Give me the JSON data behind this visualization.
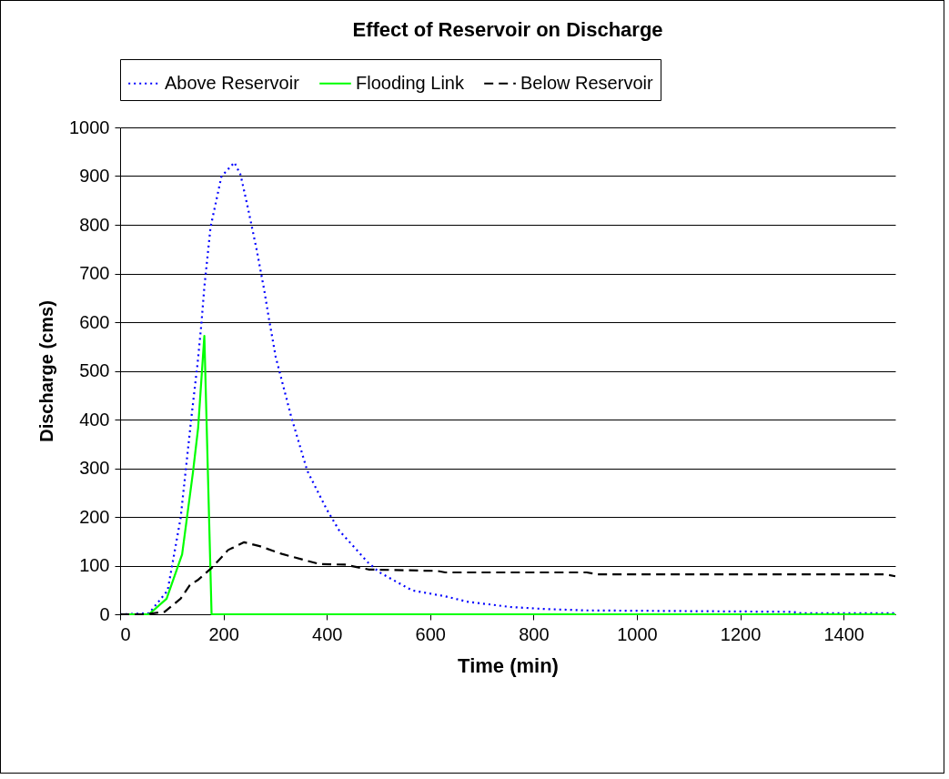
{
  "chart_data": {
    "type": "line",
    "title": "Effect of Reservoir on Discharge",
    "xlabel": "Time (min)",
    "ylabel": "Discharge (cms)",
    "xlim": [
      0,
      1500
    ],
    "xticks": [
      0,
      200,
      400,
      600,
      800,
      1000,
      1200,
      1400
    ],
    "ylim": [
      0,
      1000
    ],
    "yticks": [
      0,
      100,
      200,
      300,
      400,
      500,
      600,
      700,
      800,
      900,
      1000
    ],
    "grid": "y",
    "legend": "top",
    "marker": "none",
    "series": [
      {
        "name": "Above Reservoir",
        "color": "#0000ff",
        "line_style": "dotted",
        "x": [
          0,
          56,
          92,
          117,
          138,
          150,
          157,
          163,
          175,
          196,
          221,
          233,
          246,
          264,
          279,
          288,
          301,
          331,
          362,
          399,
          424,
          479,
          502,
          565,
          629,
          671,
          755,
          819,
          900,
          1300,
          1320,
          1500
        ],
        "values": [
          0,
          2,
          49,
          197,
          405,
          516,
          593,
          672,
          795,
          899,
          928,
          903,
          841,
          750,
          665,
          607,
          529,
          406,
          295,
          217,
          172,
          107,
          86,
          49,
          37,
          26,
          15,
          11,
          8,
          5,
          2,
          2
        ]
      },
      {
        "name": "Flooding Link",
        "color": "#00ff00",
        "line_style": "solid",
        "x": [
          0,
          56,
          90,
          120,
          141,
          151,
          163,
          177,
          1500
        ],
        "values": [
          0,
          0,
          32,
          123,
          292,
          383,
          572,
          0,
          0
        ]
      },
      {
        "name": "Below Reservoir",
        "color": "#000000",
        "line_style": "dashed",
        "x": [
          0,
          49,
          86,
          117,
          135,
          150,
          178,
          209,
          240,
          270,
          313,
          386,
          435,
          481,
          614,
          629,
          903,
          924,
          1481,
          1500
        ],
        "values": [
          0,
          0,
          5,
          32,
          60,
          70,
          96,
          132,
          148,
          140,
          124,
          103,
          102,
          92,
          89,
          86,
          86,
          82,
          82,
          78
        ]
      }
    ]
  }
}
